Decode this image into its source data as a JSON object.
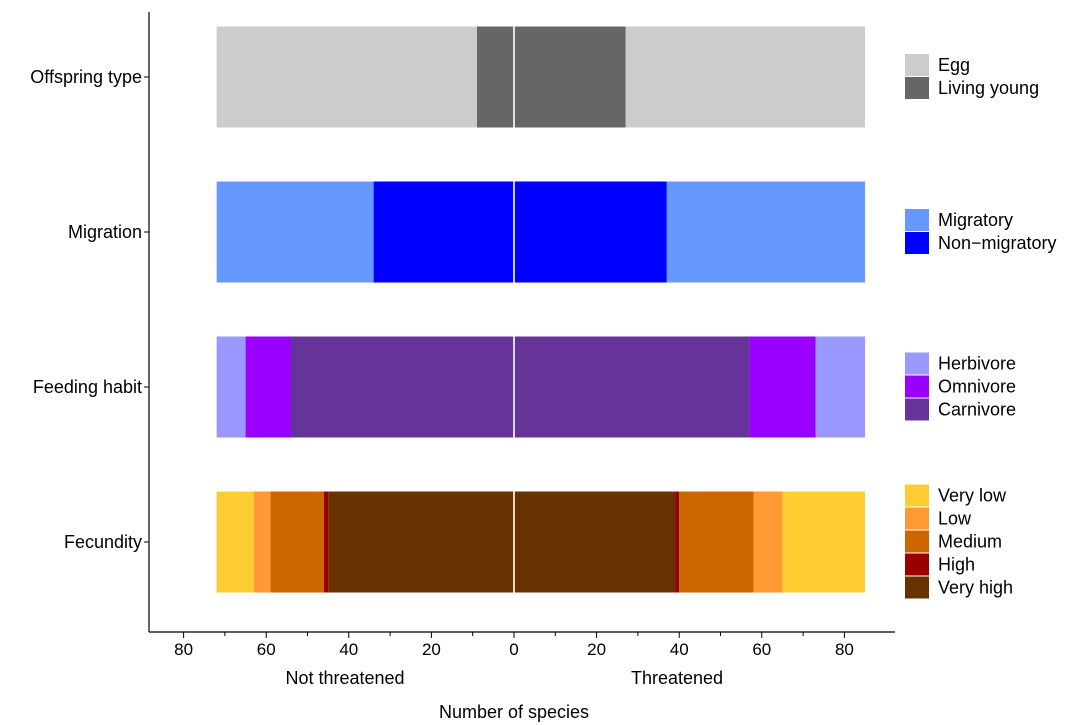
{
  "chart_data": {
    "type": "bar",
    "orientation": "horizontal-diverging",
    "xlabel": "Number of species",
    "left_label": "Not threatened",
    "right_label": "Threatened",
    "xlim": [
      -89,
      89
    ],
    "x_ticks": [
      -80,
      -60,
      -40,
      -20,
      0,
      20,
      40,
      60,
      80
    ],
    "x_tick_labels": [
      "80",
      "60",
      "40",
      "20",
      "0",
      "20",
      "40",
      "60",
      "80"
    ],
    "grid": false,
    "legend_position": "right",
    "groups": [
      {
        "name": "Offspring type",
        "legend": [
          {
            "label": "Egg",
            "color": "#cccccc"
          },
          {
            "label": "Living young",
            "color": "#666666"
          }
        ],
        "not_threatened": [
          {
            "category": "Living young",
            "value": 9
          },
          {
            "category": "Egg",
            "value": 63
          }
        ],
        "threatened": [
          {
            "category": "Living young",
            "value": 27
          },
          {
            "category": "Egg",
            "value": 58
          }
        ]
      },
      {
        "name": "Migration",
        "legend": [
          {
            "label": "Migratory",
            "color": "#6699ff"
          },
          {
            "label": "Non−migratory",
            "color": "#0000ff"
          }
        ],
        "not_threatened": [
          {
            "category": "Non−migratory",
            "value": 34
          },
          {
            "category": "Migratory",
            "value": 38
          }
        ],
        "threatened": [
          {
            "category": "Non−migratory",
            "value": 37
          },
          {
            "category": "Migratory",
            "value": 48
          }
        ]
      },
      {
        "name": "Feeding habit",
        "legend": [
          {
            "label": "Herbivore",
            "color": "#9999ff"
          },
          {
            "label": "Omnivore",
            "color": "#9900ff"
          },
          {
            "label": "Carnivore",
            "color": "#663399"
          }
        ],
        "not_threatened": [
          {
            "category": "Carnivore",
            "value": 54
          },
          {
            "category": "Omnivore",
            "value": 11
          },
          {
            "category": "Herbivore",
            "value": 7
          }
        ],
        "threatened": [
          {
            "category": "Carnivore",
            "value": 57
          },
          {
            "category": "Omnivore",
            "value": 16
          },
          {
            "category": "Herbivore",
            "value": 12
          }
        ]
      },
      {
        "name": "Fecundity",
        "legend": [
          {
            "label": "Very low",
            "color": "#ffcc33"
          },
          {
            "label": "Low",
            "color": "#ff9933"
          },
          {
            "label": "Medium",
            "color": "#cc6600"
          },
          {
            "label": "High",
            "color": "#990000"
          },
          {
            "label": "Very high",
            "color": "#663300"
          }
        ],
        "not_threatened": [
          {
            "category": "Very high",
            "value": 45
          },
          {
            "category": "High",
            "value": 1
          },
          {
            "category": "Medium",
            "value": 13
          },
          {
            "category": "Low",
            "value": 4
          },
          {
            "category": "Very low",
            "value": 9
          }
        ],
        "threatened": [
          {
            "category": "Very high",
            "value": 39
          },
          {
            "category": "High",
            "value": 1
          },
          {
            "category": "Medium",
            "value": 18
          },
          {
            "category": "Low",
            "value": 7
          },
          {
            "category": "Very low",
            "value": 20
          }
        ]
      }
    ]
  }
}
